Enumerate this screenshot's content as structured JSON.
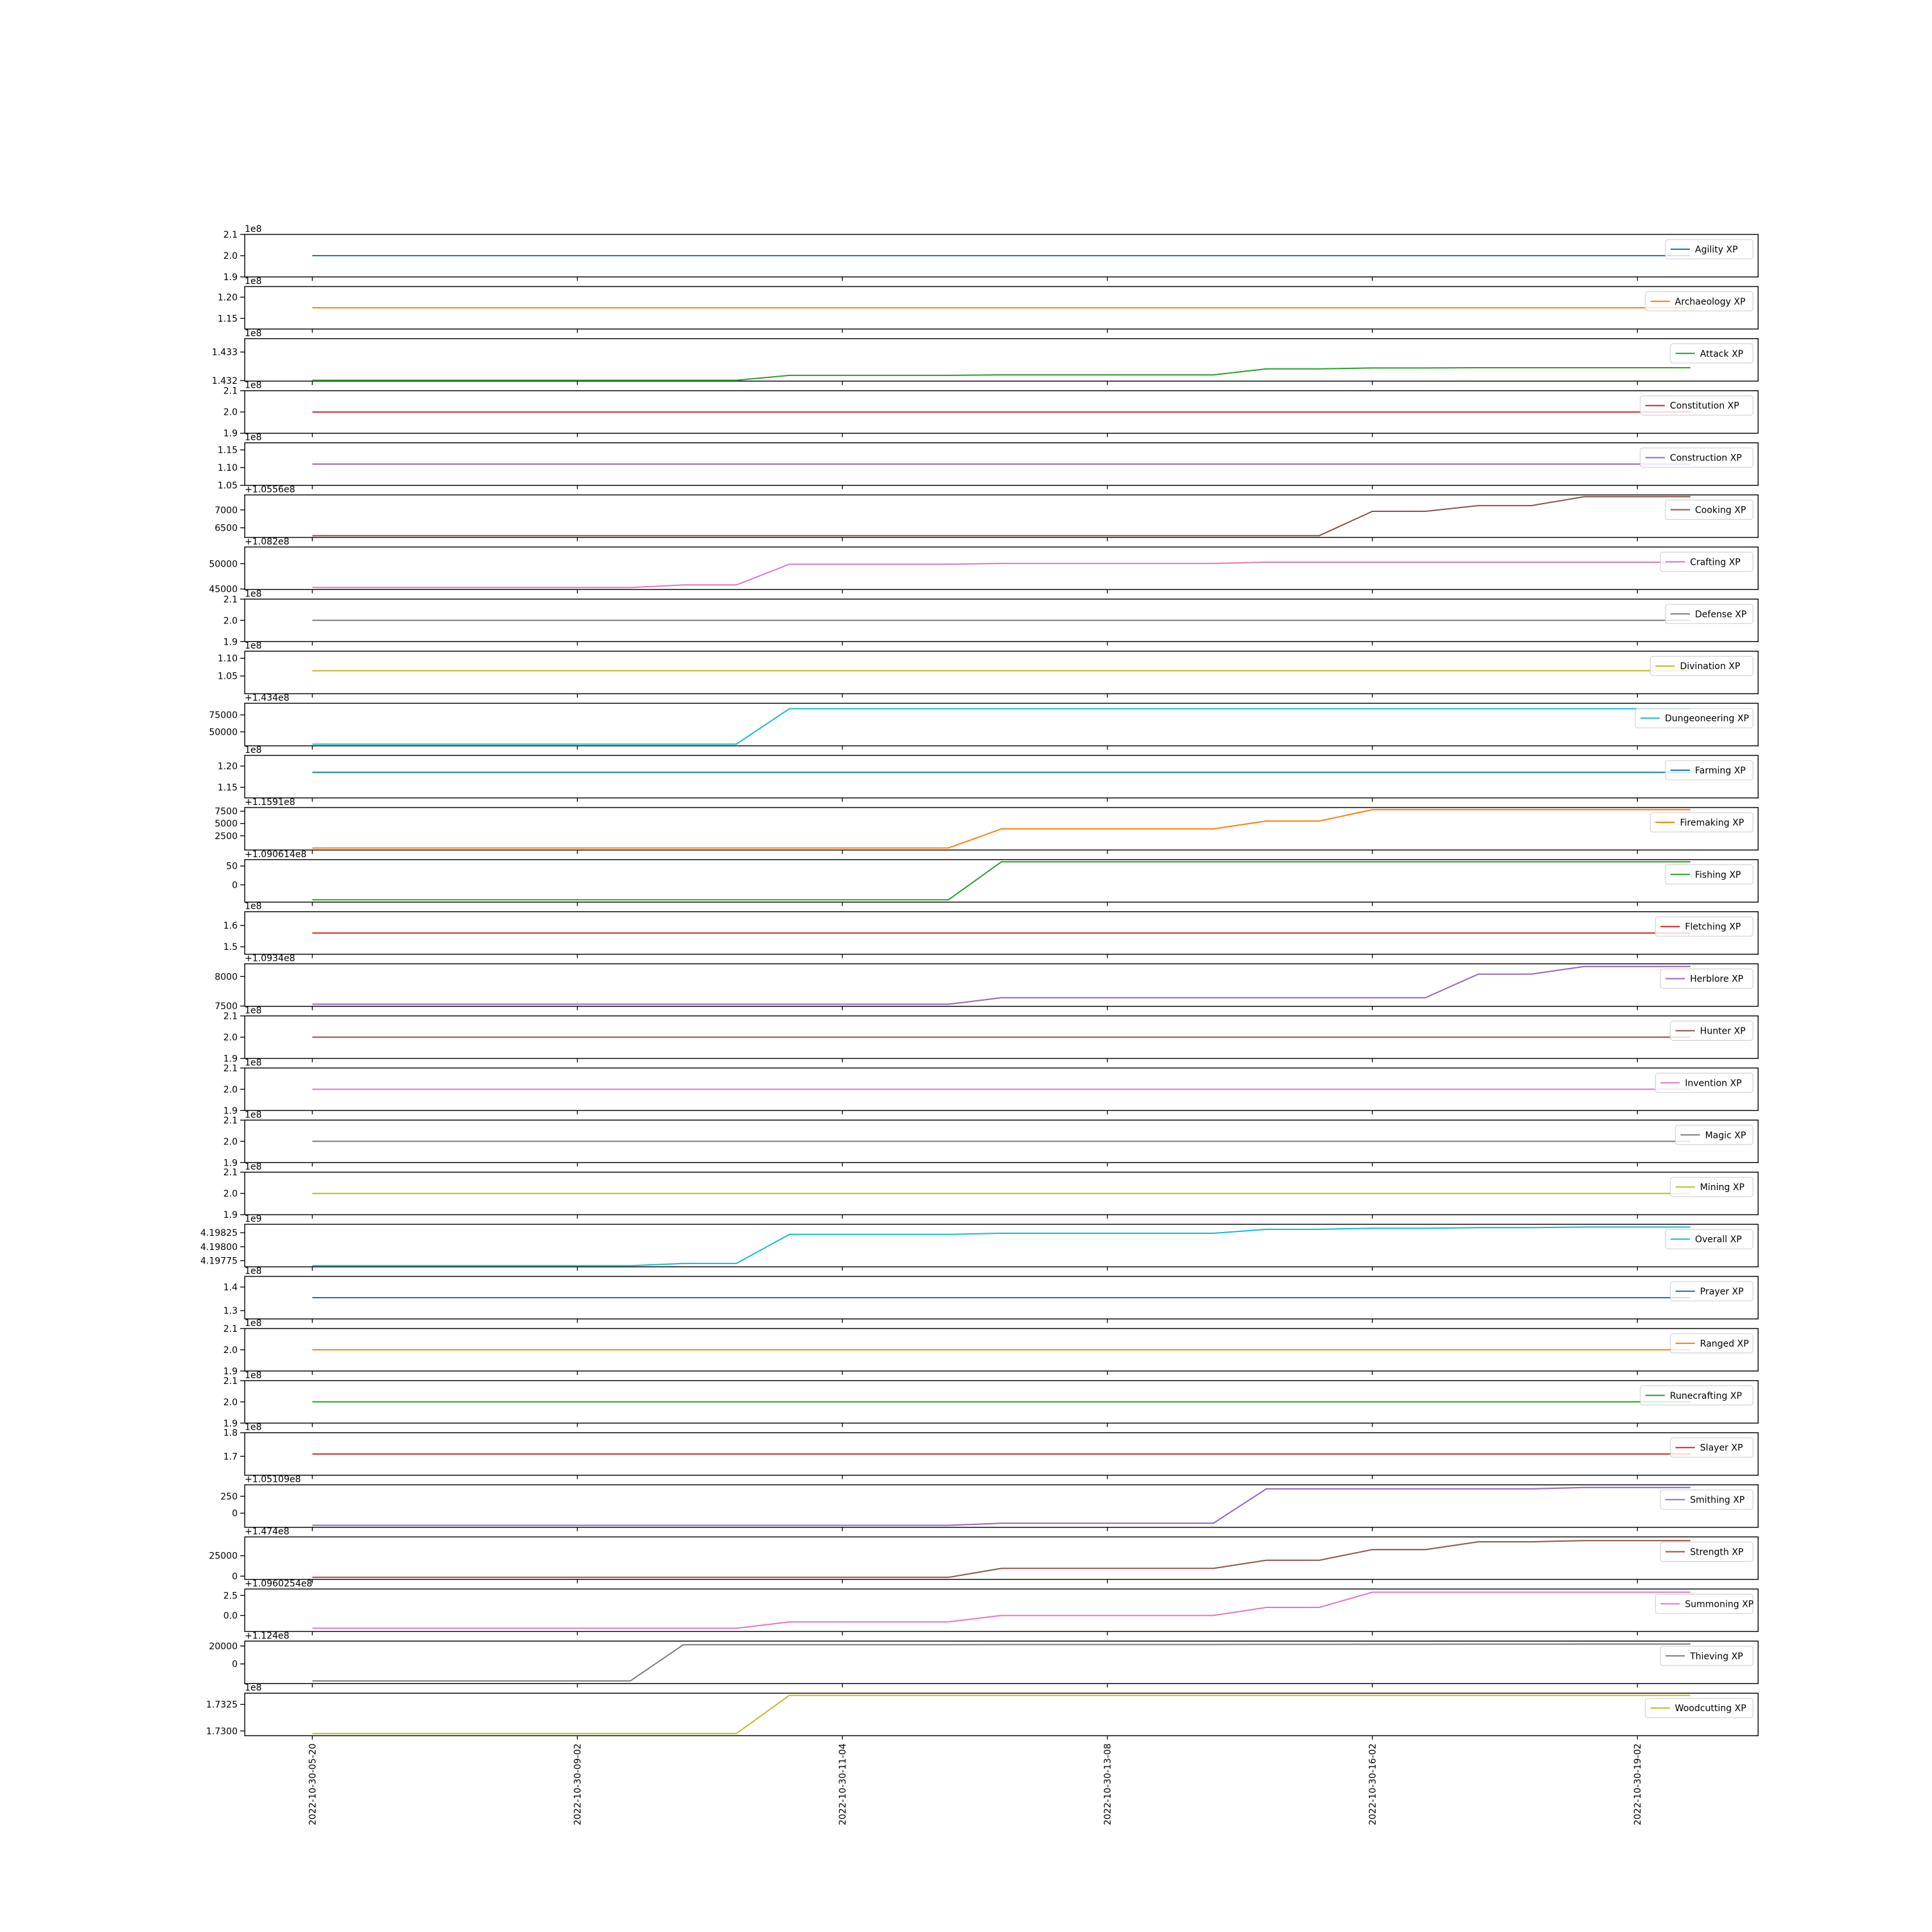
{
  "chart_data": [
    {
      "type": "line",
      "legend": "Agility XP",
      "color": "#1f77b4",
      "ylim": [
        1.9,
        2.1
      ],
      "yticks": [
        "1.9",
        "2.0",
        "2.1"
      ],
      "offset_label": "1e8",
      "y": [
        2.0,
        2.0,
        2.0,
        2.0,
        2.0,
        2.0,
        2.0,
        2.0,
        2.0,
        2.0,
        2.0,
        2.0,
        2.0,
        2.0,
        2.0,
        2.0,
        2.0,
        2.0,
        2.0,
        2.0,
        2.0,
        2.0,
        2.0,
        2.0,
        2.0,
        2.0,
        2.0
      ]
    },
    {
      "type": "line",
      "legend": "Archaeology XP",
      "color": "#ff7f0e",
      "ylim": [
        1.125,
        1.225
      ],
      "yticks": [
        "1.15",
        "1.20"
      ],
      "offset_label": "1e8",
      "y": [
        1.175,
        1.175,
        1.175,
        1.175,
        1.175,
        1.175,
        1.175,
        1.175,
        1.175,
        1.175,
        1.175,
        1.175,
        1.175,
        1.175,
        1.175,
        1.175,
        1.175,
        1.175,
        1.175,
        1.175,
        1.175,
        1.175,
        1.175,
        1.175,
        1.175,
        1.175,
        1.175
      ]
    },
    {
      "type": "line",
      "legend": "Attack XP",
      "color": "#2ca02c",
      "ylim": [
        1.43198,
        1.43347
      ],
      "yticks": [
        "1.432",
        "1.433"
      ],
      "offset_label": "1e8",
      "y": [
        1.43201,
        1.43201,
        1.43201,
        1.43201,
        1.43201,
        1.43201,
        1.43201,
        1.43201,
        1.43201,
        1.43218,
        1.43218,
        1.43218,
        1.43218,
        1.4322,
        1.4322,
        1.4322,
        1.4322,
        1.4322,
        1.43241,
        1.43241,
        1.43244,
        1.43244,
        1.43245,
        1.43245,
        1.43245,
        1.43245,
        1.43245
      ]
    },
    {
      "type": "line",
      "legend": "Constitution XP",
      "color": "#d62728",
      "ylim": [
        1.9,
        2.1
      ],
      "yticks": [
        "1.9",
        "2.0",
        "2.1"
      ],
      "offset_label": "1e8",
      "y": [
        2.0,
        2.0,
        2.0,
        2.0,
        2.0,
        2.0,
        2.0,
        2.0,
        2.0,
        2.0,
        2.0,
        2.0,
        2.0,
        2.0,
        2.0,
        2.0,
        2.0,
        2.0,
        2.0,
        2.0,
        2.0,
        2.0,
        2.0,
        2.0,
        2.0,
        2.0,
        2.0
      ]
    },
    {
      "type": "line",
      "legend": "Construction XP",
      "color": "#9467bd",
      "ylim": [
        1.05,
        1.17
      ],
      "yticks": [
        "1.05",
        "1.10",
        "1.15"
      ],
      "offset_label": "1e8",
      "y": [
        1.11,
        1.11,
        1.11,
        1.11,
        1.11,
        1.11,
        1.11,
        1.11,
        1.11,
        1.11,
        1.11,
        1.11,
        1.11,
        1.11,
        1.11,
        1.11,
        1.11,
        1.11,
        1.11,
        1.11,
        1.11,
        1.11,
        1.11,
        1.11,
        1.11,
        1.11,
        1.11
      ]
    },
    {
      "type": "line",
      "legend": "Cooking XP",
      "color": "#8c564b",
      "ylim": [
        6230,
        7420
      ],
      "yticks": [
        "6500",
        "7000"
      ],
      "offset_label": "+1.0556e8",
      "y": [
        6280,
        6280,
        6280,
        6280,
        6280,
        6280,
        6280,
        6280,
        6280,
        6280,
        6280,
        6280,
        6280,
        6280,
        6280,
        6280,
        6280,
        6280,
        6280,
        6280,
        6960,
        6960,
        7120,
        7120,
        7370,
        7370,
        7370
      ]
    },
    {
      "type": "line",
      "legend": "Crafting XP",
      "color": "#e377c2",
      "ylim": [
        44900,
        53300
      ],
      "yticks": [
        "45000",
        "50000"
      ],
      "offset_label": "+1.082e8",
      "y": [
        45300,
        45300,
        45300,
        45300,
        45300,
        45300,
        45300,
        45800,
        45800,
        49900,
        49900,
        49900,
        49900,
        50050,
        50050,
        50050,
        50050,
        50050,
        50300,
        50300,
        50300,
        50300,
        50300,
        50300,
        50300,
        50300,
        50300
      ]
    },
    {
      "type": "line",
      "legend": "Defense XP",
      "color": "#7f7f7f",
      "ylim": [
        1.9,
        2.1
      ],
      "yticks": [
        "1.9",
        "2.0",
        "2.1"
      ],
      "offset_label": "1e8",
      "y": [
        2.0,
        2.0,
        2.0,
        2.0,
        2.0,
        2.0,
        2.0,
        2.0,
        2.0,
        2.0,
        2.0,
        2.0,
        2.0,
        2.0,
        2.0,
        2.0,
        2.0,
        2.0,
        2.0,
        2.0,
        2.0,
        2.0,
        2.0,
        2.0,
        2.0,
        2.0,
        2.0
      ]
    },
    {
      "type": "line",
      "legend": "Divination XP",
      "color": "#bcbd22",
      "ylim": [
        1.0,
        1.12
      ],
      "yticks": [
        "1.05",
        "1.10"
      ],
      "offset_label": "1e8",
      "y": [
        1.065,
        1.065,
        1.065,
        1.065,
        1.065,
        1.065,
        1.065,
        1.065,
        1.065,
        1.065,
        1.065,
        1.065,
        1.065,
        1.065,
        1.065,
        1.065,
        1.065,
        1.065,
        1.065,
        1.065,
        1.065,
        1.065,
        1.065,
        1.065,
        1.065,
        1.065,
        1.065
      ]
    },
    {
      "type": "line",
      "legend": "Dungeoneering XP",
      "color": "#17becf",
      "ylim": [
        29500,
        92000
      ],
      "yticks": [
        "50000",
        "75000"
      ],
      "offset_label": "+1.434e8",
      "y": [
        32000,
        32000,
        32000,
        32000,
        32000,
        32000,
        32000,
        32000,
        32000,
        84000,
        84000,
        84000,
        84000,
        84000,
        84000,
        84000,
        84000,
        84000,
        84000,
        84000,
        84000,
        84000,
        84000,
        84000,
        84000,
        84000,
        84000
      ]
    },
    {
      "type": "line",
      "legend": "Farming XP",
      "color": "#1f77b4",
      "ylim": [
        1.125,
        1.225
      ],
      "yticks": [
        "1.15",
        "1.20"
      ],
      "offset_label": "1e8",
      "y": [
        1.185,
        1.185,
        1.185,
        1.185,
        1.185,
        1.185,
        1.185,
        1.185,
        1.185,
        1.185,
        1.185,
        1.185,
        1.185,
        1.185,
        1.185,
        1.185,
        1.185,
        1.185,
        1.185,
        1.185,
        1.185,
        1.185,
        1.185,
        1.185,
        1.185,
        1.185,
        1.185
      ]
    },
    {
      "type": "line",
      "legend": "Firemaking XP",
      "color": "#ff7f0e",
      "ylim": [
        -400,
        8250
      ],
      "yticks": [
        "2500",
        "5000",
        "7500"
      ],
      "offset_label": "+1.1591e8",
      "y": [
        0,
        0,
        0,
        0,
        0,
        0,
        0,
        0,
        0,
        0,
        0,
        0,
        0,
        3900,
        3900,
        3900,
        3900,
        3900,
        5500,
        5500,
        7800,
        7800,
        7800,
        7800,
        7800,
        7800,
        7800
      ]
    },
    {
      "type": "line",
      "legend": "Fishing XP",
      "color": "#2ca02c",
      "ylim": [
        -46,
        67
      ],
      "yticks": [
        "0",
        "50"
      ],
      "offset_label": "+1.090614e8",
      "y": [
        -40,
        -40,
        -40,
        -40,
        -40,
        -40,
        -40,
        -40,
        -40,
        -40,
        -40,
        -40,
        -40,
        61,
        61,
        61,
        61,
        61,
        61,
        61,
        61,
        61,
        61,
        61,
        61,
        61,
        61
      ]
    },
    {
      "type": "line",
      "legend": "Fletching XP",
      "color": "#d62728",
      "ylim": [
        1.465,
        1.665
      ],
      "yticks": [
        "1.5",
        "1.6"
      ],
      "offset_label": "1e8",
      "y": [
        1.565,
        1.565,
        1.565,
        1.565,
        1.565,
        1.565,
        1.565,
        1.565,
        1.565,
        1.565,
        1.565,
        1.565,
        1.565,
        1.565,
        1.565,
        1.565,
        1.565,
        1.565,
        1.565,
        1.565,
        1.565,
        1.565,
        1.565,
        1.565,
        1.565,
        1.565,
        1.565
      ]
    },
    {
      "type": "line",
      "legend": "Herblore XP",
      "color": "#9467bd",
      "ylim": [
        7495,
        8215
      ],
      "yticks": [
        "7500",
        "8000"
      ],
      "offset_label": "+1.0934e8",
      "y": [
        7530,
        7530,
        7530,
        7530,
        7530,
        7530,
        7530,
        7530,
        7530,
        7530,
        7530,
        7530,
        7530,
        7640,
        7640,
        7640,
        7640,
        7640,
        7640,
        7640,
        7640,
        7640,
        8040,
        8040,
        8170,
        8170,
        8170
      ]
    },
    {
      "type": "line",
      "legend": "Hunter XP",
      "color": "#8c564b",
      "ylim": [
        1.9,
        2.1
      ],
      "yticks": [
        "1.9",
        "2.0",
        "2.1"
      ],
      "offset_label": "1e8",
      "y": [
        2.0,
        2.0,
        2.0,
        2.0,
        2.0,
        2.0,
        2.0,
        2.0,
        2.0,
        2.0,
        2.0,
        2.0,
        2.0,
        2.0,
        2.0,
        2.0,
        2.0,
        2.0,
        2.0,
        2.0,
        2.0,
        2.0,
        2.0,
        2.0,
        2.0,
        2.0,
        2.0
      ]
    },
    {
      "type": "line",
      "legend": "Invention XP",
      "color": "#e377c2",
      "ylim": [
        1.9,
        2.1
      ],
      "yticks": [
        "1.9",
        "2.0",
        "2.1"
      ],
      "offset_label": "1e8",
      "y": [
        2.0,
        2.0,
        2.0,
        2.0,
        2.0,
        2.0,
        2.0,
        2.0,
        2.0,
        2.0,
        2.0,
        2.0,
        2.0,
        2.0,
        2.0,
        2.0,
        2.0,
        2.0,
        2.0,
        2.0,
        2.0,
        2.0,
        2.0,
        2.0,
        2.0,
        2.0,
        2.0
      ]
    },
    {
      "type": "line",
      "legend": "Magic XP",
      "color": "#7f7f7f",
      "ylim": [
        1.9,
        2.1
      ],
      "yticks": [
        "1.9",
        "2.0",
        "2.1"
      ],
      "offset_label": "1e8",
      "y": [
        2.0,
        2.0,
        2.0,
        2.0,
        2.0,
        2.0,
        2.0,
        2.0,
        2.0,
        2.0,
        2.0,
        2.0,
        2.0,
        2.0,
        2.0,
        2.0,
        2.0,
        2.0,
        2.0,
        2.0,
        2.0,
        2.0,
        2.0,
        2.0,
        2.0,
        2.0,
        2.0
      ]
    },
    {
      "type": "line",
      "legend": "Mining XP",
      "color": "#bcbd22",
      "ylim": [
        1.9,
        2.1
      ],
      "yticks": [
        "1.9",
        "2.0",
        "2.1"
      ],
      "offset_label": "1e8",
      "y": [
        2.0,
        2.0,
        2.0,
        2.0,
        2.0,
        2.0,
        2.0,
        2.0,
        2.0,
        2.0,
        2.0,
        2.0,
        2.0,
        2.0,
        2.0,
        2.0,
        2.0,
        2.0,
        2.0,
        2.0,
        2.0,
        2.0,
        2.0,
        2.0,
        2.0,
        2.0,
        2.0
      ]
    },
    {
      "type": "line",
      "legend": "Overall XP",
      "color": "#17becf",
      "ylim": [
        4.19764,
        4.1984
      ],
      "yticks": [
        "4.19775",
        "4.19800",
        "4.19825"
      ],
      "offset_label": "1e9",
      "y": [
        4.19766,
        4.19766,
        4.19766,
        4.19766,
        4.19766,
        4.19766,
        4.19766,
        4.1977,
        4.1977,
        4.19822,
        4.19822,
        4.19822,
        4.19822,
        4.19824,
        4.19824,
        4.19824,
        4.19824,
        4.19824,
        4.19831,
        4.19831,
        4.19833,
        4.19833,
        4.19834,
        4.19834,
        4.19835,
        4.19835,
        4.19835
      ]
    },
    {
      "type": "line",
      "legend": "Prayer XP",
      "color": "#1f77b4",
      "ylim": [
        1.265,
        1.445
      ],
      "yticks": [
        "1.3",
        "1.4"
      ],
      "offset_label": "1e8",
      "y": [
        1.355,
        1.355,
        1.355,
        1.355,
        1.355,
        1.355,
        1.355,
        1.355,
        1.355,
        1.355,
        1.355,
        1.355,
        1.355,
        1.355,
        1.355,
        1.355,
        1.355,
        1.355,
        1.355,
        1.355,
        1.355,
        1.355,
        1.355,
        1.355,
        1.355,
        1.355,
        1.355
      ]
    },
    {
      "type": "line",
      "legend": "Ranged XP",
      "color": "#ff7f0e",
      "ylim": [
        1.9,
        2.1
      ],
      "yticks": [
        "1.9",
        "2.0",
        "2.1"
      ],
      "offset_label": "1e8",
      "y": [
        2.0,
        2.0,
        2.0,
        2.0,
        2.0,
        2.0,
        2.0,
        2.0,
        2.0,
        2.0,
        2.0,
        2.0,
        2.0,
        2.0,
        2.0,
        2.0,
        2.0,
        2.0,
        2.0,
        2.0,
        2.0,
        2.0,
        2.0,
        2.0,
        2.0,
        2.0,
        2.0
      ]
    },
    {
      "type": "line",
      "legend": "Runecrafting XP",
      "color": "#2ca02c",
      "ylim": [
        1.9,
        2.1
      ],
      "yticks": [
        "1.9",
        "2.0",
        "2.1"
      ],
      "offset_label": "1e8",
      "y": [
        2.0,
        2.0,
        2.0,
        2.0,
        2.0,
        2.0,
        2.0,
        2.0,
        2.0,
        2.0,
        2.0,
        2.0,
        2.0,
        2.0,
        2.0,
        2.0,
        2.0,
        2.0,
        2.0,
        2.0,
        2.0,
        2.0,
        2.0,
        2.0,
        2.0,
        2.0,
        2.0
      ]
    },
    {
      "type": "line",
      "legend": "Slayer XP",
      "color": "#d62728",
      "ylim": [
        1.62,
        1.8
      ],
      "yticks": [
        "1.7",
        "1.8"
      ],
      "offset_label": "1e8",
      "y": [
        1.71,
        1.71,
        1.71,
        1.71,
        1.71,
        1.71,
        1.71,
        1.71,
        1.71,
        1.71,
        1.71,
        1.71,
        1.71,
        1.71,
        1.71,
        1.71,
        1.71,
        1.71,
        1.71,
        1.71,
        1.71,
        1.71,
        1.71,
        1.71,
        1.71,
        1.71,
        1.71
      ]
    },
    {
      "type": "line",
      "legend": "Smithing XP",
      "color": "#9467bd",
      "ylim": [
        -210,
        420
      ],
      "yticks": [
        "0",
        "250"
      ],
      "offset_label": "+1.05109e8",
      "y": [
        -180,
        -180,
        -180,
        -180,
        -180,
        -180,
        -180,
        -180,
        -180,
        -180,
        -180,
        -180,
        -180,
        -150,
        -150,
        -150,
        -150,
        -150,
        360,
        360,
        360,
        360,
        360,
        360,
        380,
        380,
        380
      ]
    },
    {
      "type": "line",
      "legend": "Strength XP",
      "color": "#8c564b",
      "ylim": [
        -4000,
        48000
      ],
      "yticks": [
        "0",
        "25000"
      ],
      "offset_label": "+1.474e8",
      "y": [
        -1500,
        -1500,
        -1500,
        -1500,
        -1500,
        -1500,
        -1500,
        -1500,
        -1500,
        -1500,
        -1500,
        -1500,
        -1500,
        9500,
        9500,
        9500,
        9500,
        9500,
        19500,
        19500,
        32500,
        32500,
        42000,
        42000,
        43500,
        43500,
        43500
      ]
    },
    {
      "type": "line",
      "legend": "Summoning XP",
      "color": "#e377c2",
      "ylim": [
        -2.0,
        3.3
      ],
      "yticks": [
        "0.0",
        "2.5"
      ],
      "offset_label": "+1.0960254e8",
      "y": [
        -1.6,
        -1.6,
        -1.6,
        -1.6,
        -1.6,
        -1.6,
        -1.6,
        -1.6,
        -1.6,
        -0.8,
        -0.8,
        -0.8,
        -0.8,
        0,
        0,
        0,
        0,
        0,
        1.0,
        1.0,
        2.9,
        2.9,
        2.9,
        2.9,
        2.9,
        2.9,
        2.9
      ]
    },
    {
      "type": "line",
      "legend": "Thieving XP",
      "color": "#7f7f7f",
      "ylim": [
        -22000,
        25500
      ],
      "yticks": [
        "0",
        "20000"
      ],
      "offset_label": "+1.124e8",
      "y": [
        -19000,
        -19000,
        -19000,
        -19000,
        -19000,
        -19000,
        -19000,
        21500,
        21500,
        21500,
        21500,
        21500,
        21500,
        21700,
        21700,
        21700,
        21700,
        21700,
        21800,
        21800,
        22000,
        22000,
        22100,
        22100,
        22200,
        22200,
        22200
      ]
    },
    {
      "type": "line",
      "legend": "Woodcutting XP",
      "color": "#bcbd22",
      "ylim": [
        1.72955,
        1.73355
      ],
      "yticks": [
        "1.7300",
        "1.7325"
      ],
      "offset_label": "1e8",
      "y": [
        1.72975,
        1.72975,
        1.72975,
        1.72975,
        1.72975,
        1.72975,
        1.72975,
        1.72975,
        1.72975,
        1.73335,
        1.73335,
        1.73335,
        1.73335,
        1.73335,
        1.73335,
        1.73335,
        1.73335,
        1.73335,
        1.73335,
        1.73335,
        1.73335,
        1.73335,
        1.73335,
        1.73335,
        1.73335,
        1.73335,
        1.73335
      ]
    }
  ],
  "x_axis": {
    "ticks": [
      "2022-10-30-05-20",
      "2022-10-30-09-02",
      "2022-10-30-11-04",
      "2022-10-30-13-08",
      "2022-10-30-16-02",
      "2022-10-30-19-02"
    ],
    "tick_indices": [
      0,
      5,
      10,
      15,
      20,
      25
    ],
    "n_points": 27
  }
}
